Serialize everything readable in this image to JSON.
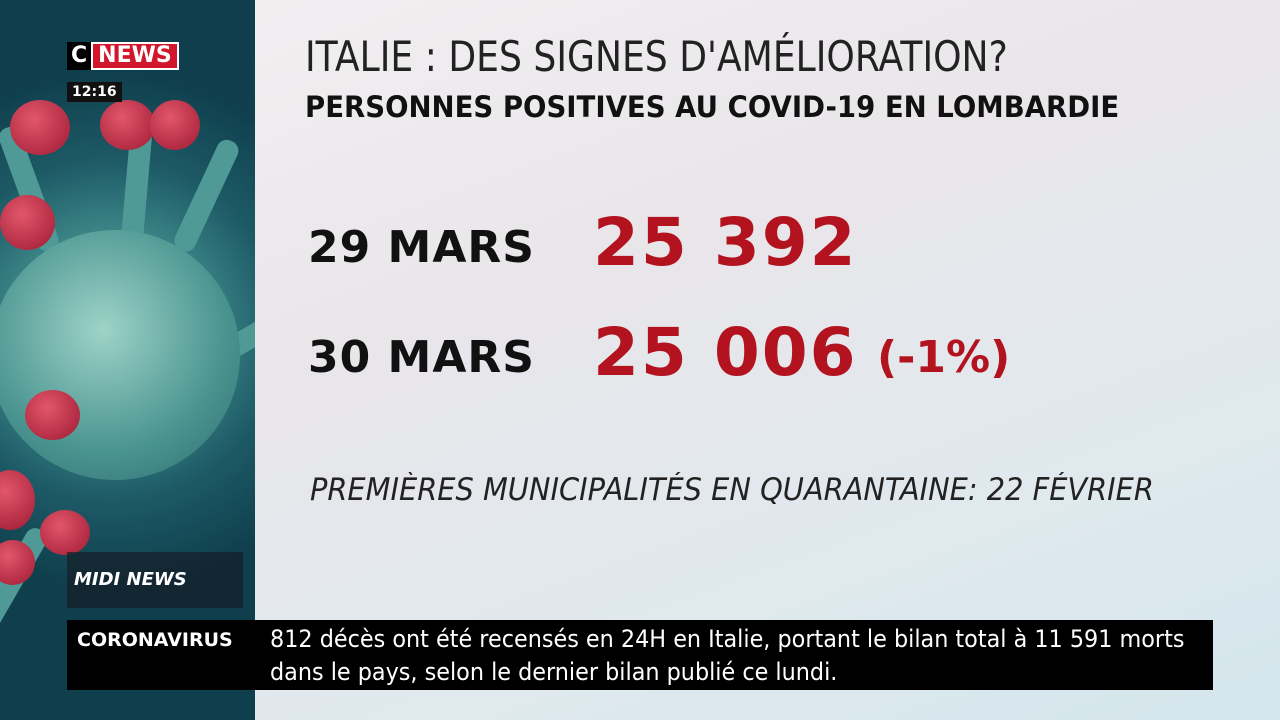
{
  "logo": {
    "letter": "C",
    "word": "NEWS"
  },
  "clock": "12:16",
  "header": {
    "title": "ITALIE : DES SIGNES D'AMÉLIORATION?",
    "subtitle": "PERSONNES POSITIVES AU COVID-19 EN LOMBARDIE"
  },
  "rows": [
    {
      "date": "29 MARS",
      "value": "25 392"
    },
    {
      "date": "30 MARS",
      "value": "25 006",
      "change": "(-1%)"
    }
  ],
  "footnote": "PREMIÈRES MUNICIPALITÉS EN QUARANTAINE: 22 FÉVRIER",
  "show": "MIDI NEWS",
  "ticker": {
    "label": "CORONAVIRUS",
    "lines": [
      "812 décès ont été recensés en 24H en Italie, portant le bilan total à 11 591 morts",
      "dans le pays, selon le dernier bilan publié ce lundi."
    ]
  }
}
